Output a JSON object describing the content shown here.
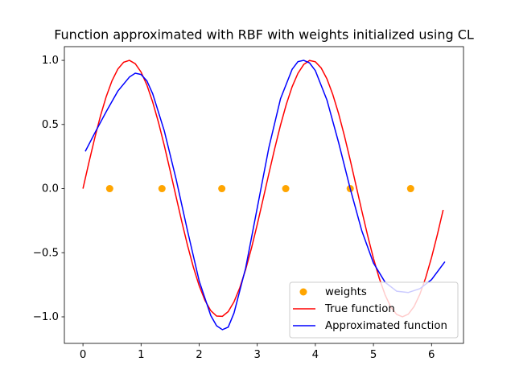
{
  "chart_data": {
    "type": "line",
    "title": "Function approximated with RBF with weights initialized using CL",
    "xlim": [
      -0.32,
      6.55
    ],
    "ylim": [
      -1.207,
      1.107
    ],
    "xticks": [
      0,
      1,
      2,
      3,
      4,
      5,
      6
    ],
    "yticks": [
      {
        "value": -1.0,
        "label": "−1.0"
      },
      {
        "value": -0.5,
        "label": "−0.5"
      },
      {
        "value": 0.0,
        "label": "0.0"
      },
      {
        "value": 0.5,
        "label": "0.5"
      },
      {
        "value": 1.0,
        "label": "1.0"
      }
    ],
    "legend": "lower right",
    "series": [
      {
        "name": "weights",
        "type": "scatter",
        "color": "orange",
        "x": [
          0.46,
          1.36,
          2.39,
          3.49,
          4.6,
          5.64
        ],
        "values": [
          0,
          0,
          0,
          0,
          0,
          0
        ]
      },
      {
        "name": "True function",
        "type": "line",
        "color": "red",
        "x": [
          0,
          0.1,
          0.2,
          0.3,
          0.4,
          0.5,
          0.6,
          0.7,
          0.8,
          0.9,
          1,
          1.1,
          1.2,
          1.3,
          1.4,
          1.5,
          1.6,
          1.7,
          1.8,
          1.9,
          2,
          2.1,
          2.2,
          2.3,
          2.4,
          2.5,
          2.6,
          2.7,
          2.8,
          2.9,
          3,
          3.1,
          3.2,
          3.3,
          3.4,
          3.5,
          3.6,
          3.7,
          3.8,
          3.9,
          4,
          4.1,
          4.2,
          4.3,
          4.4,
          4.5,
          4.6,
          4.7,
          4.8,
          4.9,
          5,
          5.1,
          5.2,
          5.3,
          5.4,
          5.5,
          5.6,
          5.7,
          5.8,
          5.9,
          6,
          6.1,
          6.2
        ],
        "values": [
          0,
          0.199,
          0.389,
          0.565,
          0.717,
          0.841,
          0.932,
          0.985,
          1.0,
          0.974,
          0.909,
          0.808,
          0.675,
          0.516,
          0.335,
          0.141,
          -0.058,
          -0.256,
          -0.443,
          -0.612,
          -0.757,
          -0.872,
          -0.952,
          -0.994,
          -0.996,
          -0.959,
          -0.883,
          -0.773,
          -0.631,
          -0.465,
          -0.279,
          -0.083,
          0.117,
          0.312,
          0.494,
          0.657,
          0.794,
          0.899,
          0.968,
          0.999,
          0.989,
          0.941,
          0.855,
          0.734,
          0.585,
          0.412,
          0.223,
          0.025,
          -0.174,
          -0.366,
          -0.544,
          -0.699,
          -0.828,
          -0.925,
          -0.981,
          -1.0,
          -0.979,
          -0.919,
          -0.823,
          -0.694,
          -0.537,
          -0.359,
          -0.166
        ]
      },
      {
        "name": "Approximated function",
        "type": "line",
        "color": "blue",
        "x": [
          0.04,
          0.2,
          0.4,
          0.6,
          0.8,
          0.9,
          1.0,
          1.1,
          1.2,
          1.4,
          1.6,
          1.8,
          2.0,
          2.2,
          2.3,
          2.4,
          2.5,
          2.6,
          2.8,
          3.0,
          3.2,
          3.4,
          3.6,
          3.7,
          3.8,
          3.9,
          4.0,
          4.2,
          4.4,
          4.6,
          4.8,
          5.0,
          5.2,
          5.4,
          5.6,
          5.8,
          6.0,
          6.23
        ],
        "values": [
          0.29,
          0.43,
          0.6,
          0.76,
          0.87,
          0.9,
          0.89,
          0.84,
          0.74,
          0.45,
          0.08,
          -0.33,
          -0.72,
          -0.99,
          -1.07,
          -1.1,
          -1.08,
          -0.97,
          -0.62,
          -0.15,
          0.32,
          0.7,
          0.93,
          0.99,
          1.0,
          0.98,
          0.92,
          0.69,
          0.36,
          0.0,
          -0.33,
          -0.58,
          -0.73,
          -0.8,
          -0.81,
          -0.78,
          -0.71,
          -0.57
        ]
      }
    ]
  }
}
